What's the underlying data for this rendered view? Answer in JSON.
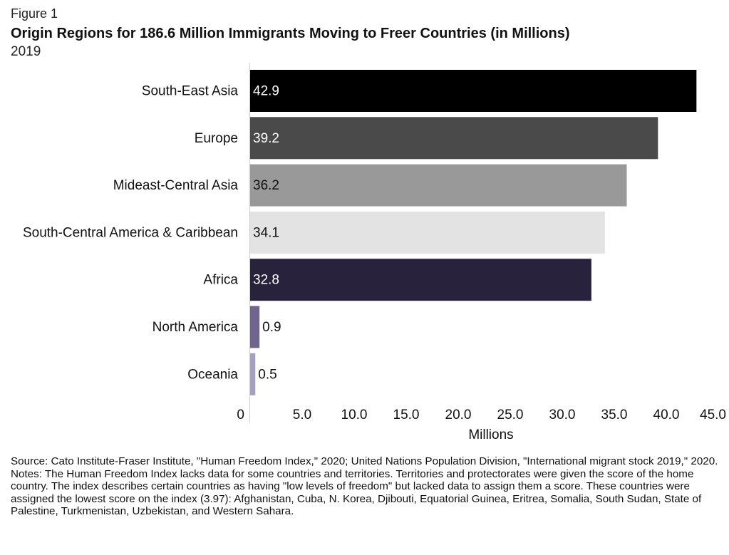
{
  "figure_label": "Figure 1",
  "chart_data": {
    "type": "bar",
    "orientation": "horizontal",
    "title": "Origin Regions for 186.6 Million Immigrants Moving to Freer Countries (in Millions)",
    "subtitle": "2019",
    "categories": [
      "South-East Asia",
      "Europe",
      "Mideast-Central Asia",
      "South-Central America & Caribbean",
      "Africa",
      "North America",
      "Oceania"
    ],
    "values": [
      42.9,
      39.2,
      36.2,
      34.1,
      32.8,
      0.9,
      0.5
    ],
    "value_labels": [
      "42.9",
      "39.2",
      "36.2",
      "34.1",
      "32.8",
      "0.9",
      "0.5"
    ],
    "bar_colors": [
      "#000000",
      "#4a4a4a",
      "#999999",
      "#e3e3e3",
      "#28223d",
      "#6f6590",
      "#a59fc3"
    ],
    "label_colors": [
      "#ffffff",
      "#ffffff",
      "#111111",
      "#111111",
      "#ffffff",
      "#111111",
      "#111111"
    ],
    "xlabel": "Millions",
    "ylabel": "",
    "xlim": [
      0,
      45
    ],
    "xticks": [
      0,
      5,
      10,
      15,
      20,
      25,
      30,
      35,
      40,
      45
    ],
    "xtick_labels": [
      "0",
      "5.0",
      "10.0",
      "15.0",
      "20.0",
      "25.0",
      "30.0",
      "35.0",
      "40.0",
      "45.0"
    ],
    "grid": false
  },
  "footnotes": {
    "source": "Source: Cato Institute-Fraser Institute, \"Human Freedom Index,\" 2020; United Nations Population Division, \"International migrant stock 2019,\" 2020.",
    "notes": "Notes: The Human Freedom Index lacks data for some countries and territories. Territories and protectorates were given the score of the home country. The index describes certain countries as having \"low levels of freedom\" but lacked data to assign them a score. These countries were assigned the lowest score on the index (3.97): Afghanistan, Cuba, N. Korea, Djibouti, Equatorial Guinea, Eritrea, Somalia, South Sudan, State of Palestine, Turkmenistan, Uzbekistan, and Western Sahara."
  }
}
